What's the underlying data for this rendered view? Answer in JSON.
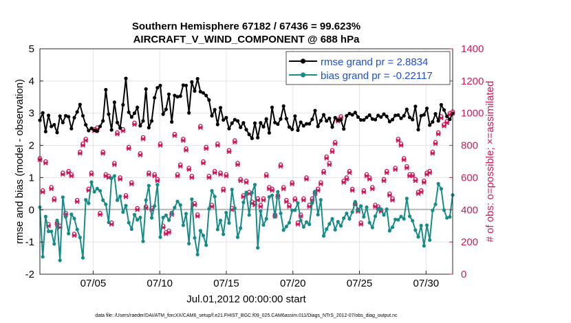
{
  "chart_data": {
    "type": "line",
    "title": "Southern Hemisphere 67182 / 67436 = 99.623%",
    "subtitle": "AIRCRAFT_V_WIND_COMPONENT @ 688 hPa",
    "xlabel": "Jul.01,2012 00:00:00 start",
    "ylabel_left": "rmse and bias (model - observation)",
    "ylabel_right": "# of obs: o=possible; ×=assimilated",
    "ylim_left": [
      -2,
      5
    ],
    "ylim_right": [
      0,
      1400
    ],
    "xlim": [
      1,
      32
    ],
    "x_tick_values": [
      5,
      10,
      15,
      20,
      25,
      30
    ],
    "x_tick_labels": [
      "07/05",
      "07/10",
      "07/15",
      "07/20",
      "07/25",
      "07/30"
    ],
    "y_left_ticks": [
      "-2",
      "-1",
      "0",
      "1",
      "2",
      "3",
      "4",
      "5"
    ],
    "y_right_ticks": [
      "0",
      "200",
      "400",
      "600",
      "800",
      "1000",
      "1200",
      "1400"
    ],
    "grid": true,
    "legend_position": "top-right",
    "footer": "data file: /Users/raeder/DAI/ATM_forcXX/CAM6_setup/f.e21.FHIST_BGC.f09_025.CAM6assim.011/Diags_NTrS_2012-07/obs_diag_output.nc",
    "series": [
      {
        "name": "rmse grand pr = 2.8834",
        "color": "#000000",
        "values": [
          2.78,
          3.01,
          2.43,
          2.93,
          2.59,
          2.64,
          2.4,
          2.91,
          2.71,
          2.92,
          2.89,
          2.52,
          2.86,
          3.04,
          3.27,
          2.92,
          2.64,
          2.46,
          2.53,
          2.47,
          2.44,
          2.59,
          2.76,
          3.73,
          2.97,
          2.48,
          3.34,
          2.71,
          2.54,
          3.26,
          4.08,
          3.03,
          2.88,
          3.0,
          3.18,
          2.61,
          2.76,
          3.75,
          2.55,
          2.76,
          3.48,
          3.79,
          3.86,
          2.97,
          3.12,
          3.59,
          2.73,
          3.55,
          3.51,
          3.53,
          3.87,
          3.86,
          3.01,
          3.97,
          3.69,
          4.07,
          3.67,
          3.63,
          3.55,
          3.41,
          2.92,
          3.11,
          2.65,
          3.17,
          2.79,
          2.86,
          2.52,
          2.69,
          2.8,
          2.76,
          2.56,
          2.7,
          2.49,
          2.34,
          2.22,
          2.69,
          2.24,
          2.7,
          2.58,
          2.82,
          2.39,
          3.18,
          2.71,
          2.66,
          2.82,
          3.22,
          2.83,
          2.57,
          2.5,
          2.91,
          2.47,
          2.72,
          2.61,
          2.67,
          2.67,
          2.81,
          3.08,
          2.59,
          2.77,
          2.95,
          2.76,
          2.84,
          2.57,
          2.86,
          2.78,
          2.79,
          2.51,
          2.92,
          2.99,
          2.95,
          3.02,
          2.88,
          2.79,
          2.79,
          2.87,
          2.94,
          2.82,
          2.8,
          2.93,
          2.88,
          2.97,
          2.9,
          2.74,
          2.8,
          2.93,
          2.94,
          2.84,
          2.92,
          3.12,
          2.87,
          2.8,
          3.21,
          2.49,
          2.92,
          2.95,
          3.15,
          2.63,
          2.73,
          2.98,
          2.76,
          3.26,
          3.1,
          2.9,
          2.81,
          2.99
        ]
      },
      {
        "name": "bias grand pr = -0.22117",
        "color": "#168b87",
        "values": [
          0.08,
          -1.46,
          -0.21,
          -0.67,
          -0.67,
          -1.06,
          -0.33,
          -1.57,
          0.39,
          -0.22,
          -0.74,
          -0.14,
          -0.27,
          -0.61,
          -0.86,
          -1.49,
          0.31,
          0.2,
          0.86,
          0.56,
          0.66,
          0.59,
          0.3,
          0.17,
          -0.39,
          0.98,
          1.05,
          0.3,
          0.42,
          -0.07,
          0.13,
          -0.4,
          -0.6,
          -0.15,
          -0.31,
          -0.24,
          -0.98,
          0.3,
          0.75,
          -0.25,
          0.12,
          0.78,
          -0.85,
          -0.24,
          -0.17,
          -0.32,
          -0.12,
          0.07,
          0.26,
          0.15,
          -0.48,
          -0.12,
          -1.05,
          0.33,
          -0.87,
          -1.39,
          -0.65,
          -0.8,
          -1.1,
          0.03,
          0.59,
          0.41,
          -0.61,
          -0.33,
          -0.76,
          -0.09,
          -0.41,
          0.63,
          0.05,
          -0.85,
          -0.57,
          0.23,
          0.54,
          -0.16,
          0.53,
          0.78,
          -1.18,
          -0.04,
          -0.47,
          -0.28,
          0.4,
          0.45,
          -0.22,
          0.56,
          -0.11,
          -0.63,
          -0.52,
          -0.4,
          -0.02,
          -0.01,
          0.21,
          -0.33,
          -0.53,
          -0.38,
          -0.45,
          0.21,
          0.57,
          -0.15,
          0.31,
          -0.81,
          -0.6,
          -0.44,
          -0.28,
          -0.62,
          -0.37,
          -0.5,
          -0.26,
          -0.11,
          -0.28,
          -0.07,
          0.25,
          -0.02,
          0.12,
          -0.22,
          0.08,
          -0.4,
          -0.55,
          -0.2,
          0.03,
          0.02,
          -0.16,
          0.02,
          -0.65,
          -0.54,
          -0.3,
          -0.31,
          -0.21,
          -0.28,
          0.35,
          -0.2,
          -0.34,
          -0.63,
          -0.84,
          -0.49,
          -1.12,
          -0.48,
          -0.94,
          -0.02,
          0.17,
          0.81,
          0.65,
          -0.01,
          -0.25,
          -0.22,
          0.46
        ]
      },
      {
        "name": "# of obs possible",
        "color": "#d1145a",
        "marker": "o",
        "axis": "right",
        "values": [
          720,
          520,
          700,
          310,
          540,
          470,
          320,
          300,
          630,
          380,
          640,
          620,
          250,
          460,
          760,
          810,
          840,
          530,
          630,
          900,
          910,
          380,
          760,
          620,
          610,
          320,
          690,
          880,
          600,
          900,
          490,
          790,
          570,
          940,
          410,
          750,
          850,
          420,
          630,
          410,
          620,
          590,
          810,
          300,
          260,
          270,
          380,
          870,
          620,
          680,
          840,
          780,
          660,
          610,
          440,
          370,
          920,
          700,
          790,
          610,
          430,
          640,
          810,
          630,
          530,
          620,
          770,
          410,
          830,
          690,
          590,
          490,
          580,
          510,
          450,
          440,
          470,
          430,
          470,
          620,
          540,
          530,
          370,
          490,
          680,
          540,
          460,
          430,
          570,
          470,
          320,
          370,
          470,
          600,
          430,
          470,
          510,
          530,
          570,
          640,
          730,
          690,
          770,
          820,
          960,
          980,
          580,
          600,
          640,
          530,
          440,
          400,
          320,
          520,
          620,
          600,
          540,
          430,
          420,
          400,
          590,
          640,
          500,
          470,
          660,
          840,
          810,
          720,
          670,
          620,
          620,
          590,
          510,
          520,
          580,
          630,
          640,
          760,
          820,
          880,
          980,
          930,
          950,
          1000,
          1010
        ]
      },
      {
        "name": "# of obs assimilated",
        "color": "#d1145a",
        "marker": "x",
        "axis": "right",
        "values": [
          710,
          510,
          690,
          300,
          530,
          460,
          310,
          290,
          620,
          370,
          630,
          610,
          240,
          450,
          750,
          800,
          830,
          520,
          620,
          890,
          900,
          370,
          750,
          610,
          600,
          310,
          680,
          870,
          590,
          890,
          480,
          780,
          560,
          930,
          400,
          740,
          840,
          410,
          620,
          400,
          610,
          580,
          800,
          290,
          250,
          260,
          370,
          860,
          610,
          670,
          830,
          770,
          650,
          600,
          430,
          360,
          910,
          690,
          780,
          600,
          420,
          630,
          800,
          620,
          520,
          610,
          760,
          400,
          820,
          680,
          580,
          480,
          570,
          500,
          440,
          430,
          460,
          420,
          460,
          610,
          530,
          520,
          360,
          480,
          670,
          530,
          450,
          420,
          560,
          460,
          310,
          360,
          460,
          590,
          420,
          460,
          500,
          520,
          560,
          630,
          720,
          680,
          760,
          810,
          950,
          970,
          570,
          590,
          630,
          520,
          430,
          390,
          310,
          510,
          610,
          590,
          530,
          420,
          410,
          390,
          580,
          630,
          490,
          460,
          650,
          830,
          800,
          710,
          660,
          610,
          610,
          580,
          500,
          510,
          570,
          620,
          630,
          750,
          810,
          870,
          970,
          920,
          940,
          990,
          1000
        ]
      }
    ]
  }
}
